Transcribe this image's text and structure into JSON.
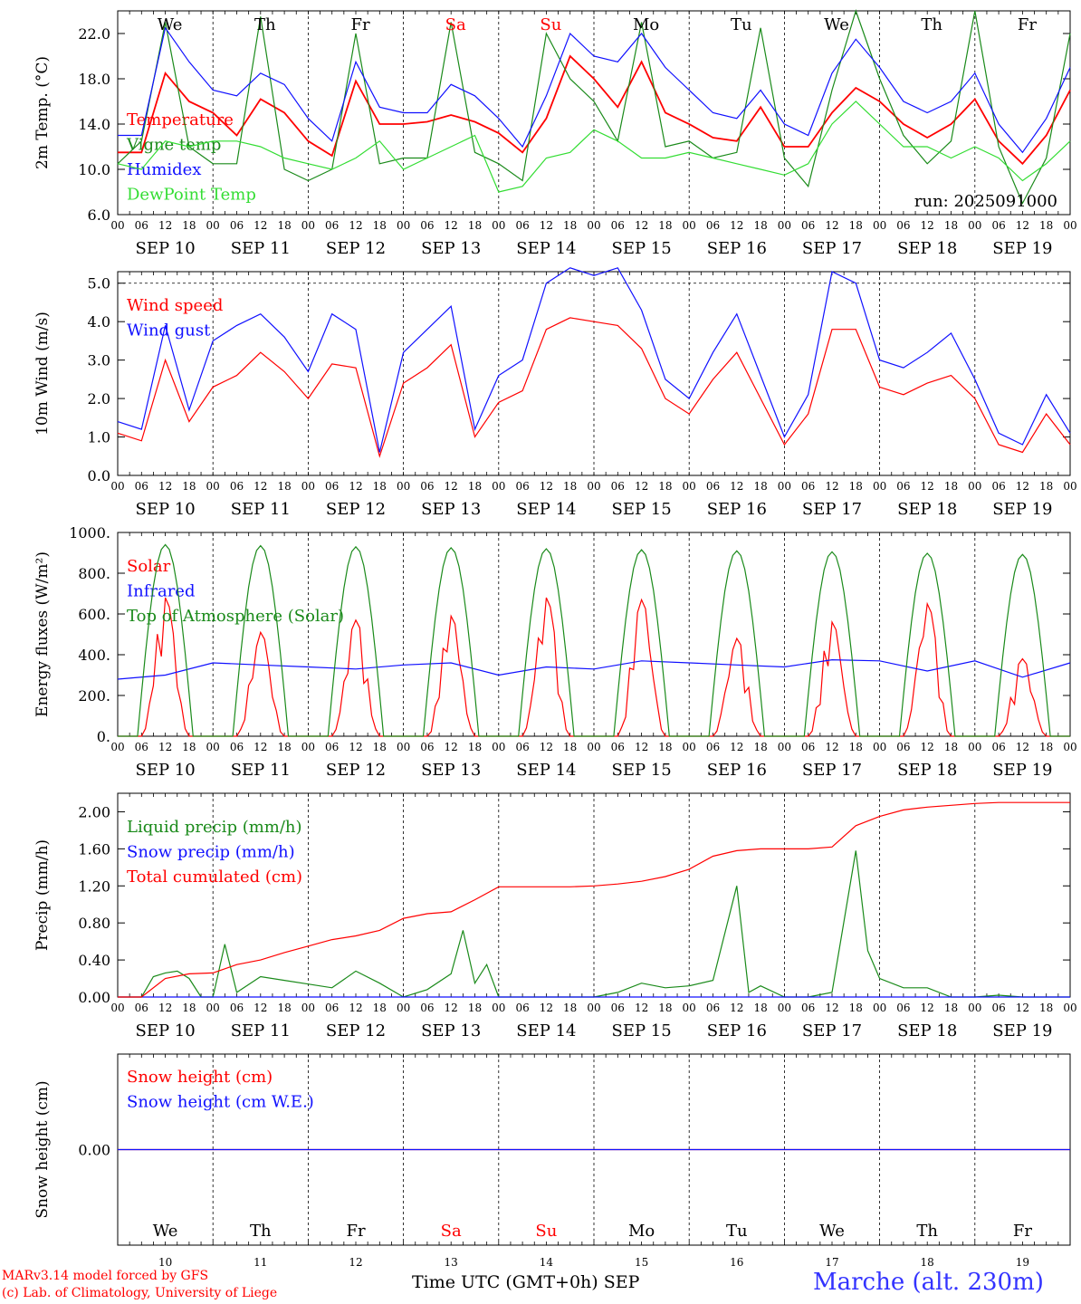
{
  "colors": {
    "red": "#ff0000",
    "green": "#1a8a1a",
    "blue": "#1010ff",
    "light_green": "#33dd33",
    "weekend": "#ff0000",
    "text": "#000000"
  },
  "run_label": "run: 2025091000",
  "footer": {
    "model": "MARv3.14 model forced by GFS",
    "lab": "(c) Lab. of Climatology, University of Liege",
    "time_axis": "Time UTC (GMT+0h) SEP",
    "station": "Marche (alt. 230m)"
  },
  "days": [
    {
      "weekday": "We",
      "date": "SEP 10",
      "day": "10",
      "weekend": false
    },
    {
      "weekday": "Th",
      "date": "SEP 11",
      "day": "11",
      "weekend": false
    },
    {
      "weekday": "Fr",
      "date": "SEP 12",
      "day": "12",
      "weekend": false
    },
    {
      "weekday": "Sa",
      "date": "SEP 13",
      "day": "13",
      "weekend": true
    },
    {
      "weekday": "Su",
      "date": "SEP 14",
      "day": "14",
      "weekend": true
    },
    {
      "weekday": "Mo",
      "date": "SEP 15",
      "day": "15",
      "weekend": false
    },
    {
      "weekday": "Tu",
      "date": "SEP 16",
      "day": "16",
      "weekend": false
    },
    {
      "weekday": "We",
      "date": "SEP 17",
      "day": "17",
      "weekend": false
    },
    {
      "weekday": "Th",
      "date": "SEP 18",
      "day": "18",
      "weekend": false
    },
    {
      "weekday": "Fr",
      "date": "SEP 19",
      "day": "19",
      "weekend": false
    }
  ],
  "hour_ticks": [
    "00",
    "06",
    "12",
    "18"
  ],
  "chart_data": [
    {
      "id": "temp",
      "type": "line",
      "ylabel": "2m Temp. (°C)",
      "ylim": [
        6,
        24
      ],
      "yticks": [
        "6.0",
        "10.0",
        "14.0",
        "18.0",
        "22.0"
      ],
      "ytick_values": [
        6,
        10,
        14,
        18,
        22
      ],
      "x_hours": [
        0,
        6,
        12,
        18,
        24,
        30,
        36,
        42,
        48,
        54,
        60,
        66,
        72,
        78,
        84,
        90,
        96,
        102,
        108,
        114,
        120,
        126,
        132,
        138,
        144,
        150,
        156,
        162,
        168,
        174,
        180,
        186,
        192,
        198,
        204,
        210,
        216,
        222,
        228,
        234,
        240
      ],
      "series": [
        {
          "name": "Temperature",
          "color": "#ff0000",
          "values": [
            11.5,
            11.5,
            18.5,
            16.0,
            15.0,
            13.0,
            16.2,
            15.0,
            12.5,
            11.2,
            17.8,
            14.0,
            14.0,
            14.2,
            14.8,
            14.2,
            13.2,
            11.5,
            14.5,
            20.0,
            18.0,
            15.5,
            19.5,
            15.0,
            14.0,
            12.8,
            12.5,
            15.5,
            12.0,
            12.0,
            15.0,
            17.2,
            16.0,
            14.0,
            12.8,
            14.0,
            16.2,
            12.5,
            10.5,
            13.0,
            17.0
          ]
        },
        {
          "name": "Vigne temp",
          "color": "#1a8a1a",
          "values": [
            10.5,
            12.5,
            23.0,
            12.0,
            10.5,
            10.5,
            23.5,
            10.0,
            9.0,
            10.0,
            22.0,
            10.5,
            11.0,
            11.0,
            23.0,
            11.5,
            10.5,
            9.0,
            22.0,
            18.0,
            16.0,
            12.5,
            23.0,
            12.0,
            12.5,
            11.0,
            11.5,
            22.5,
            11.0,
            8.5,
            17.0,
            24.0,
            18.0,
            13.0,
            10.5,
            12.5,
            24.0,
            12.0,
            7.0,
            11.0,
            22.0
          ]
        },
        {
          "name": "Humidex",
          "color": "#1010ff",
          "values": [
            13.0,
            13.0,
            22.5,
            19.5,
            17.0,
            16.5,
            18.5,
            17.5,
            14.5,
            12.5,
            19.5,
            15.5,
            15.0,
            15.0,
            17.5,
            16.5,
            14.5,
            12.0,
            16.5,
            22.0,
            20.0,
            19.5,
            22.0,
            19.0,
            17.0,
            15.0,
            14.5,
            17.0,
            14.0,
            13.0,
            18.5,
            21.5,
            19.0,
            16.0,
            15.0,
            16.0,
            18.5,
            14.0,
            11.5,
            14.5,
            19.0
          ]
        },
        {
          "name": "DewPoint Temp",
          "color": "#33dd33",
          "values": [
            10.5,
            10.0,
            12.5,
            12.0,
            12.5,
            12.5,
            12.0,
            11.0,
            10.5,
            10.0,
            11.0,
            12.5,
            10.0,
            11.0,
            12.0,
            13.0,
            8.0,
            8.5,
            11.0,
            11.5,
            13.5,
            12.5,
            11.0,
            11.0,
            11.5,
            11.0,
            10.5,
            10.0,
            9.5,
            10.5,
            14.0,
            16.0,
            14.0,
            12.0,
            12.0,
            11.0,
            12.0,
            11.0,
            9.0,
            10.5,
            12.5
          ]
        }
      ]
    },
    {
      "id": "wind",
      "type": "line",
      "ylabel": "10m Wind (m/s)",
      "ylim": [
        0,
        5.3
      ],
      "yticks": [
        "0.0",
        "1.0",
        "2.0",
        "3.0",
        "4.0",
        "5.0"
      ],
      "ytick_values": [
        0,
        1,
        2,
        3,
        4,
        5
      ],
      "x_hours": [
        0,
        6,
        12,
        18,
        24,
        30,
        36,
        42,
        48,
        54,
        60,
        66,
        72,
        78,
        84,
        90,
        96,
        102,
        108,
        114,
        120,
        126,
        132,
        138,
        144,
        150,
        156,
        162,
        168,
        174,
        180,
        186,
        192,
        198,
        204,
        210,
        216,
        222,
        228,
        234,
        240
      ],
      "series": [
        {
          "name": "Wind speed",
          "color": "#ff0000",
          "values": [
            1.1,
            0.9,
            3.0,
            1.4,
            2.3,
            2.6,
            3.2,
            2.7,
            2.0,
            2.9,
            2.8,
            0.5,
            2.4,
            2.8,
            3.4,
            1.0,
            1.9,
            2.2,
            3.8,
            4.1,
            4.0,
            3.9,
            3.3,
            2.0,
            1.6,
            2.5,
            3.2,
            2.0,
            0.8,
            1.6,
            3.8,
            3.8,
            2.3,
            2.1,
            2.4,
            2.6,
            2.0,
            0.8,
            0.6,
            1.6,
            0.8
          ]
        },
        {
          "name": "Wind gust",
          "color": "#1010ff",
          "values": [
            1.4,
            1.2,
            3.9,
            1.7,
            3.5,
            3.9,
            4.2,
            3.6,
            2.7,
            4.2,
            3.8,
            0.6,
            3.2,
            3.8,
            4.4,
            1.2,
            2.6,
            3.0,
            5.0,
            5.4,
            5.2,
            5.4,
            4.3,
            2.5,
            2.0,
            3.2,
            4.2,
            2.6,
            1.0,
            2.1,
            5.3,
            5.0,
            3.0,
            2.8,
            3.2,
            3.7,
            2.5,
            1.1,
            0.8,
            2.1,
            1.1
          ]
        }
      ]
    },
    {
      "id": "energy",
      "type": "line",
      "ylabel": "Energy fluxes (W/m²)",
      "ylim": [
        0,
        1000
      ],
      "yticks": [
        "0.",
        "200.",
        "400.",
        "600.",
        "800.",
        "1000."
      ],
      "ytick_values": [
        0,
        200,
        400,
        600,
        800,
        1000
      ],
      "series": [
        {
          "name": "Solar",
          "color": "#ff0000",
          "peaks": [
            680,
            510,
            570,
            590,
            680,
            670,
            480,
            560,
            650,
            380
          ]
        },
        {
          "name": "Infrared",
          "color": "#1010ff",
          "x_hours": [
            0,
            12,
            24,
            36,
            48,
            60,
            72,
            84,
            96,
            108,
            120,
            132,
            144,
            156,
            168,
            180,
            192,
            204,
            216,
            228,
            240
          ],
          "values": [
            280,
            300,
            360,
            350,
            340,
            330,
            350,
            360,
            300,
            340,
            330,
            370,
            360,
            350,
            340,
            375,
            370,
            320,
            370,
            290,
            360
          ]
        },
        {
          "name": "Top of Atmosphere (Solar)",
          "color": "#1a8a1a",
          "peaks": [
            940,
            935,
            930,
            925,
            920,
            915,
            910,
            905,
            898,
            892
          ]
        }
      ]
    },
    {
      "id": "precip",
      "type": "line",
      "ylabel": "Precip (mm/h)",
      "ylim": [
        0,
        2.2
      ],
      "yticks": [
        "0.00",
        "0.40",
        "0.80",
        "1.20",
        "1.60",
        "2.00"
      ],
      "ytick_values": [
        0,
        0.4,
        0.8,
        1.2,
        1.6,
        2.0
      ],
      "series": [
        {
          "name": "Liquid precip (mm/h)",
          "color": "#1a8a1a",
          "x_hours": [
            0,
            6,
            9,
            12,
            15,
            18,
            21,
            24,
            27,
            30,
            36,
            42,
            48,
            54,
            60,
            66,
            72,
            78,
            84,
            87,
            90,
            93,
            96,
            102,
            108,
            114,
            120,
            126,
            132,
            138,
            144,
            150,
            156,
            159,
            162,
            168,
            174,
            180,
            186,
            189,
            192,
            198,
            204,
            210,
            216,
            222,
            228,
            234,
            240
          ],
          "values": [
            0,
            0,
            0.22,
            0.26,
            0.28,
            0.2,
            0,
            0,
            0.57,
            0.05,
            0.22,
            0.18,
            0.14,
            0.1,
            0.28,
            0.15,
            0,
            0.08,
            0.25,
            0.72,
            0.15,
            0.35,
            0,
            0,
            0,
            0,
            0,
            0.05,
            0.15,
            0.1,
            0.12,
            0.18,
            1.2,
            0.05,
            0.12,
            0,
            0,
            0.05,
            1.58,
            0.5,
            0.2,
            0.1,
            0.1,
            0,
            0,
            0.02,
            0,
            0,
            0
          ]
        },
        {
          "name": "Snow precip (mm/h)",
          "color": "#1010ff",
          "x_hours": [
            0,
            240
          ],
          "values": [
            0,
            0
          ]
        },
        {
          "name": "Total cumulated (cm)",
          "color": "#ff0000",
          "x_hours": [
            0,
            6,
            12,
            18,
            24,
            30,
            36,
            42,
            48,
            54,
            60,
            66,
            72,
            78,
            84,
            90,
            96,
            102,
            108,
            114,
            120,
            126,
            132,
            138,
            144,
            150,
            156,
            162,
            168,
            174,
            180,
            186,
            192,
            198,
            204,
            210,
            216,
            222,
            228,
            234,
            240
          ],
          "values": [
            0,
            0,
            0.2,
            0.25,
            0.26,
            0.35,
            0.4,
            0.48,
            0.55,
            0.62,
            0.66,
            0.72,
            0.85,
            0.9,
            0.92,
            1.05,
            1.19,
            1.19,
            1.19,
            1.19,
            1.2,
            1.22,
            1.25,
            1.3,
            1.38,
            1.52,
            1.58,
            1.6,
            1.6,
            1.6,
            1.62,
            1.85,
            1.95,
            2.02,
            2.05,
            2.07,
            2.09,
            2.1,
            2.1,
            2.1,
            2.1
          ]
        }
      ]
    },
    {
      "id": "snow",
      "type": "line",
      "ylabel": "Snow height (cm)",
      "ylim": [
        -1,
        1
      ],
      "yticks": [
        "0.00"
      ],
      "ytick_values": [
        0
      ],
      "series": [
        {
          "name": "Snow height (cm)",
          "color": "#ff0000",
          "x_hours": [
            0,
            240
          ],
          "values": [
            0,
            0
          ]
        },
        {
          "name": "Snow height (cm W.E.)",
          "color": "#1010ff",
          "x_hours": [
            0,
            240
          ],
          "values": [
            0,
            0
          ]
        }
      ]
    }
  ]
}
